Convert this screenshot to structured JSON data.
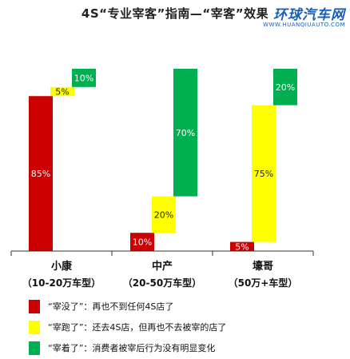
{
  "title": "4S“专业宰客”指南—“宰客”效果",
  "watermark": {
    "main": "环球汽车网",
    "sub": "WWW.HUANQIUAUTO.COM"
  },
  "colors": {
    "red": "#cc0000",
    "yellow": "#ffff00",
    "green": "#00b050"
  },
  "chart_data": {
    "type": "bar",
    "subtype": "stacked-floating",
    "categories": [
      {
        "name": "小康",
        "sub": "（10-20万车型）"
      },
      {
        "name": "中产",
        "sub": "（20-50万车型）"
      },
      {
        "name": "壕哥",
        "sub": "（50万+车型）"
      }
    ],
    "series": [
      {
        "name": "“宰没了”：再也不到任何4S店了",
        "color": "red",
        "values": [
          85,
          10,
          5
        ]
      },
      {
        "name": "“宰跑了”：还去4S店，但再也不去被宰的店了",
        "color": "yellow",
        "values": [
          5,
          20,
          75
        ]
      },
      {
        "name": "“宰着了”：消费者被宰后行为没有明显变化",
        "color": "green",
        "values": [
          10,
          70,
          20
        ]
      }
    ],
    "data_labels": [
      [
        "85%",
        "5%",
        "10%"
      ],
      [
        "10%",
        "20%",
        "70%"
      ],
      [
        "5%",
        "75%",
        "20%"
      ]
    ],
    "ylim": [
      0,
      100
    ],
    "grid": false
  }
}
